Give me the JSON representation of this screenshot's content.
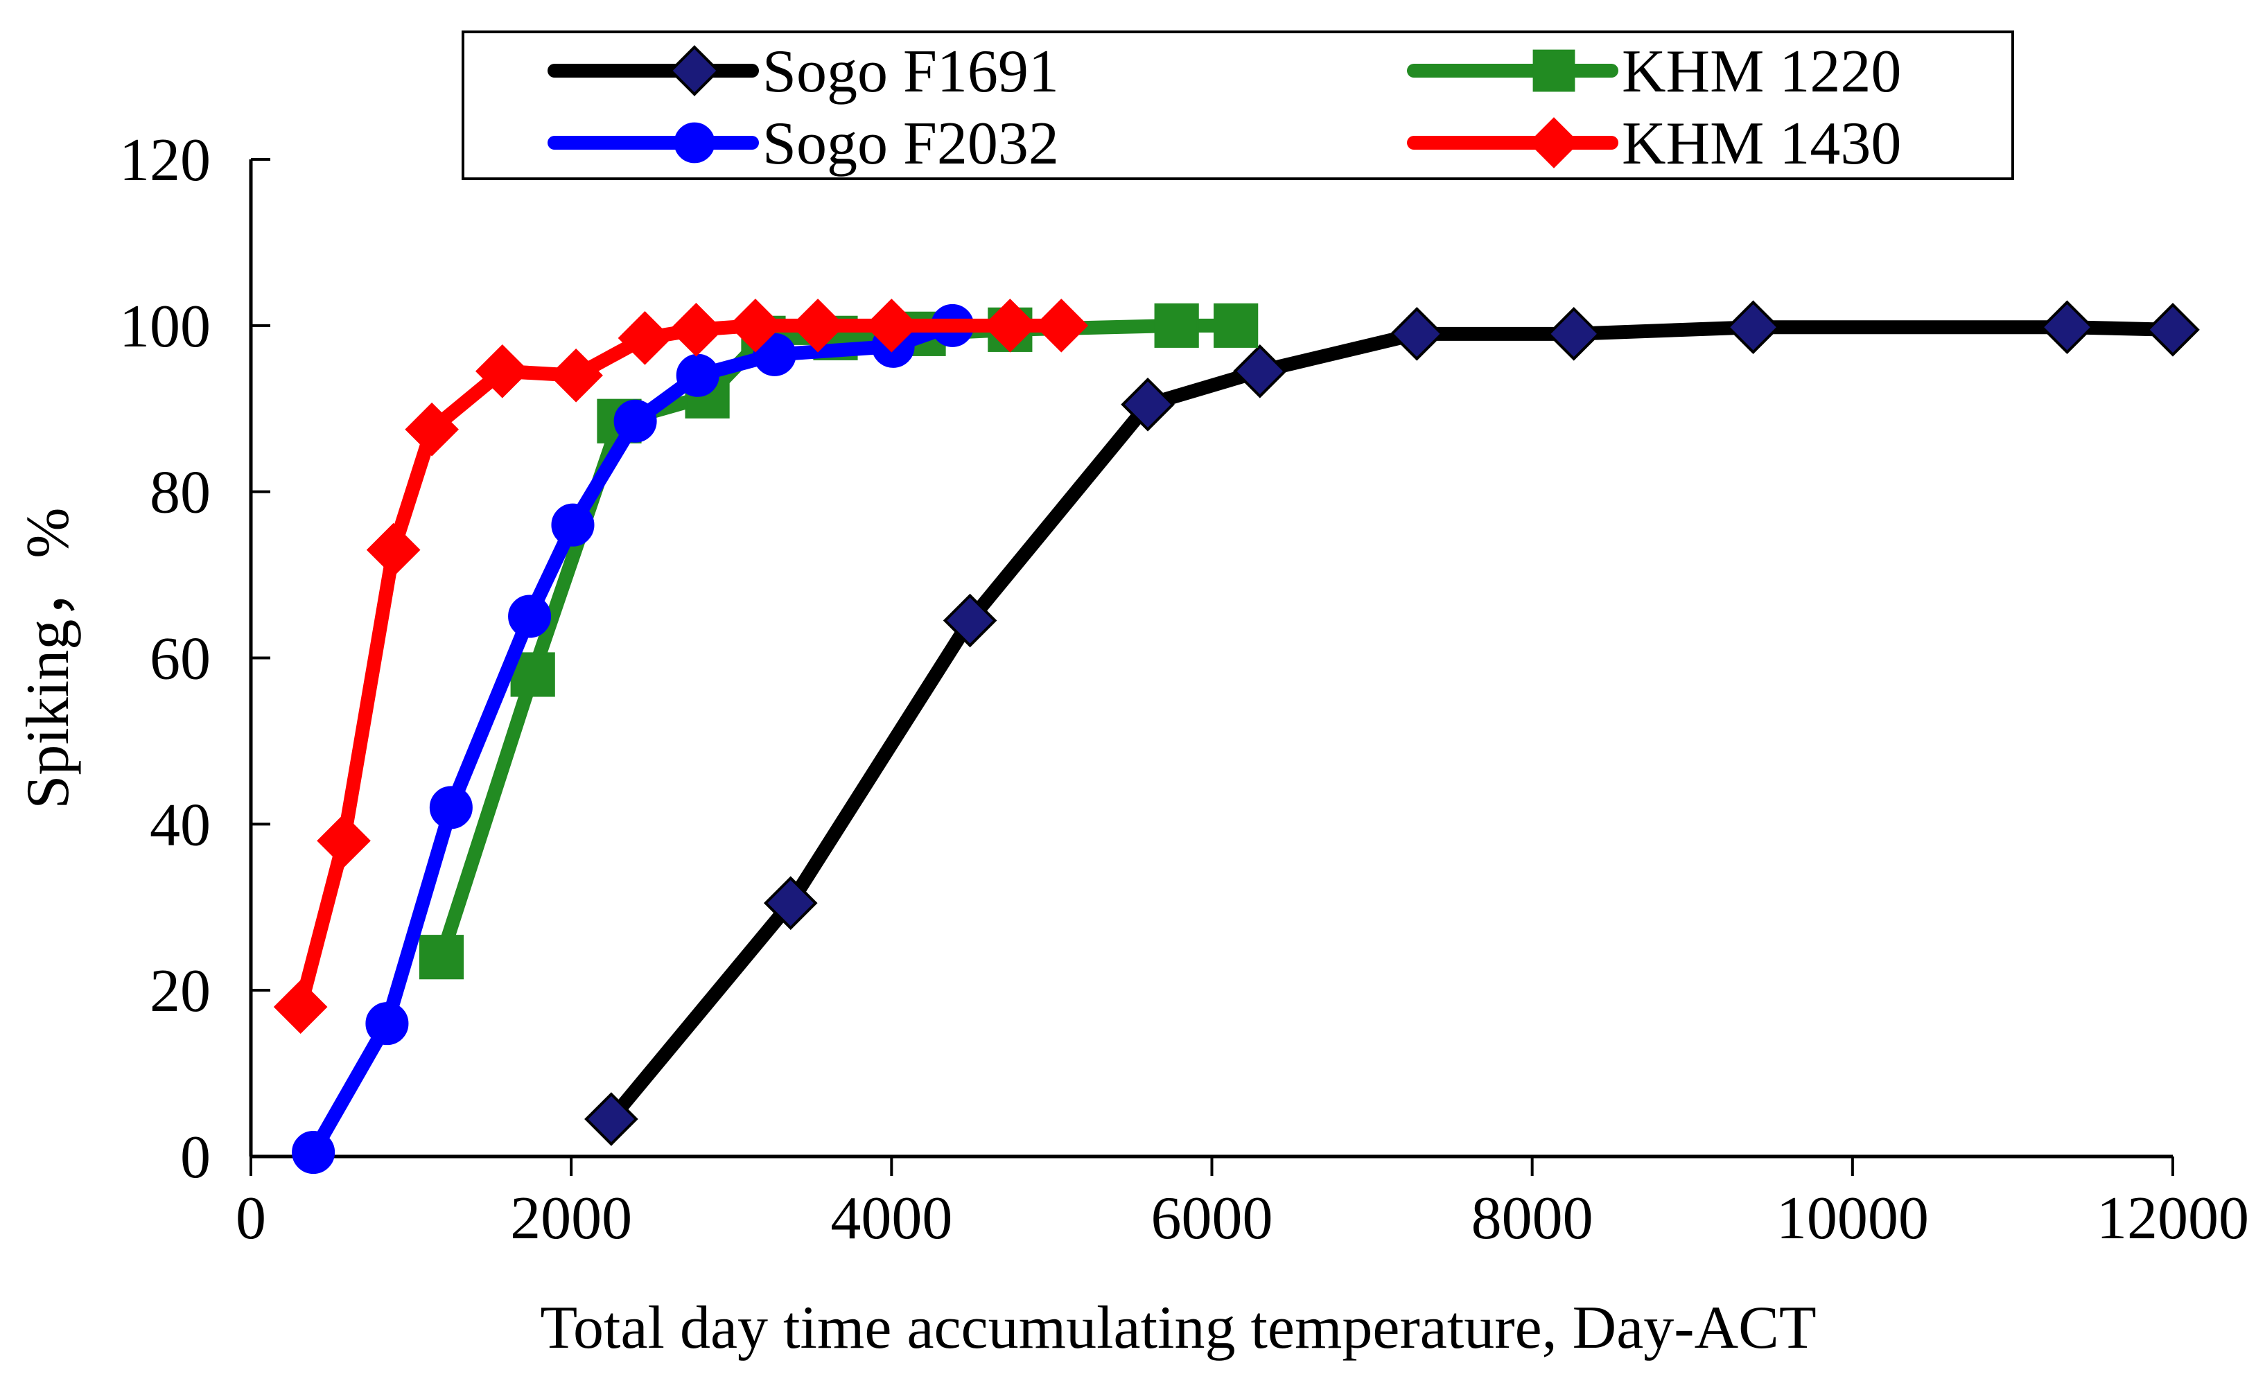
{
  "chart_data": {
    "type": "line",
    "xlabel": "Total day time accumulating temperature, Day-ACT",
    "ylabel": "Spiking，%",
    "xlim": [
      0,
      12000
    ],
    "ylim": [
      0,
      120
    ],
    "x_ticks": [
      0,
      2000,
      4000,
      6000,
      8000,
      10000,
      12000
    ],
    "y_ticks": [
      0,
      20,
      40,
      60,
      80,
      100,
      120
    ],
    "grid": false,
    "legend_position": "top",
    "series": [
      {
        "name": "Sogo F1691",
        "color": "#000000",
        "marker": "diamond",
        "marker_color": "#1a1a7a",
        "x": [
          2250,
          3370,
          4490,
          5600,
          6300,
          7280,
          8260,
          9380,
          11340,
          12000
        ],
        "y": [
          4.5,
          30.5,
          64.5,
          90.5,
          94.5,
          99,
          99,
          99.8,
          99.8,
          99.5
        ]
      },
      {
        "name": "KHM 1220",
        "color": "#228b22",
        "marker": "square",
        "marker_color": "#228b22",
        "x": [
          1190,
          1760,
          2300,
          2850,
          3200,
          3650,
          4200,
          4740,
          5780,
          6150
        ],
        "y": [
          24,
          58,
          88.5,
          91.5,
          98.5,
          98.5,
          99,
          99.5,
          100,
          100
        ]
      },
      {
        "name": "Sogo F2032",
        "color": "#0000ff",
        "marker": "circle",
        "marker_color": "#0000ff",
        "x": [
          390,
          850,
          1250,
          1740,
          2010,
          2400,
          2790,
          3270,
          4010,
          4380
        ],
        "y": [
          0.5,
          16,
          42,
          65,
          76,
          88.5,
          94,
          96.5,
          97.5,
          100
        ]
      },
      {
        "name": "KHM 1430",
        "color": "#ff0000",
        "marker": "diamond",
        "marker_color": "#ff0000",
        "x": [
          310,
          580,
          890,
          1130,
          1570,
          2030,
          2460,
          2780,
          3150,
          3540,
          4000,
          4740,
          5060
        ],
        "y": [
          18,
          38,
          73,
          87.5,
          94.5,
          94,
          98.5,
          99.5,
          100,
          100,
          100,
          100,
          100
        ]
      }
    ]
  }
}
